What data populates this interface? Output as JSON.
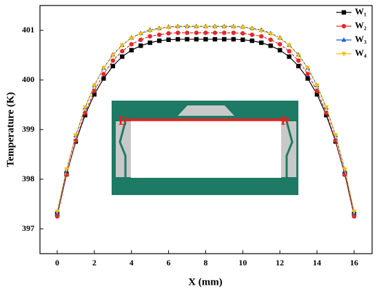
{
  "chart_data": {
    "type": "line",
    "x_label": "X (mm)",
    "y_label": "Temperature (K)",
    "x": [
      0,
      0.5,
      1,
      1.5,
      2,
      2.5,
      3,
      3.5,
      4,
      4.5,
      5,
      5.5,
      6,
      6.5,
      7,
      7.5,
      8,
      8.5,
      9,
      9.5,
      10,
      10.5,
      11,
      11.5,
      12,
      12.5,
      13,
      13.5,
      14,
      14.5,
      15,
      15.5,
      16
    ],
    "series": [
      {
        "name": "W₁",
        "color": "#000000",
        "marker": "square",
        "values": [
          397.3,
          398.1,
          398.76,
          399.29,
          399.71,
          400.03,
          400.28,
          400.47,
          400.6,
          400.69,
          400.75,
          400.79,
          400.81,
          400.82,
          400.82,
          400.82,
          400.82,
          400.82,
          400.82,
          400.82,
          400.81,
          400.79,
          400.75,
          400.69,
          400.6,
          400.47,
          400.28,
          400.03,
          399.71,
          399.29,
          398.76,
          398.1,
          397.3
        ]
      },
      {
        "name": "W₂",
        "color": "#e8262b",
        "marker": "circle",
        "values": [
          397.25,
          398.09,
          398.78,
          399.34,
          399.78,
          400.12,
          400.39,
          400.58,
          400.72,
          400.81,
          400.88,
          400.91,
          400.94,
          400.95,
          400.95,
          400.95,
          400.95,
          400.95,
          400.95,
          400.95,
          400.94,
          400.91,
          400.88,
          400.81,
          400.72,
          400.58,
          400.39,
          400.12,
          399.78,
          399.34,
          398.78,
          398.09,
          397.25
        ]
      },
      {
        "name": "W₃",
        "color": "#1f5fcc",
        "marker": "triangle-up",
        "values": [
          397.32,
          398.18,
          398.88,
          399.44,
          399.89,
          400.24,
          400.51,
          400.7,
          400.85,
          400.94,
          401.01,
          401.04,
          401.07,
          401.08,
          401.08,
          401.08,
          401.08,
          401.08,
          401.08,
          401.08,
          401.07,
          401.04,
          401.01,
          400.94,
          400.85,
          400.7,
          400.51,
          400.24,
          399.89,
          399.44,
          398.88,
          398.18,
          397.32
        ]
      },
      {
        "name": "W₄",
        "color": "#f5c000",
        "marker": "triangle-down",
        "values": [
          397.35,
          398.2,
          398.89,
          399.45,
          399.89,
          400.24,
          400.5,
          400.7,
          400.84,
          400.93,
          400.99,
          401.03,
          401.06,
          401.07,
          401.07,
          401.07,
          401.07,
          401.07,
          401.07,
          401.07,
          401.06,
          401.03,
          400.99,
          400.93,
          400.84,
          400.7,
          400.5,
          400.24,
          399.89,
          399.45,
          398.89,
          398.2,
          397.35
        ]
      }
    ],
    "xlim": [
      -0.93,
      16.97
    ],
    "xticks": [
      0,
      2,
      4,
      6,
      8,
      10,
      12,
      14,
      16
    ],
    "ylim": [
      396.5,
      401.5
    ],
    "yticks": [
      397,
      398,
      399,
      400,
      401
    ],
    "legend": "upper right",
    "annotations": [
      "E",
      "F"
    ]
  }
}
